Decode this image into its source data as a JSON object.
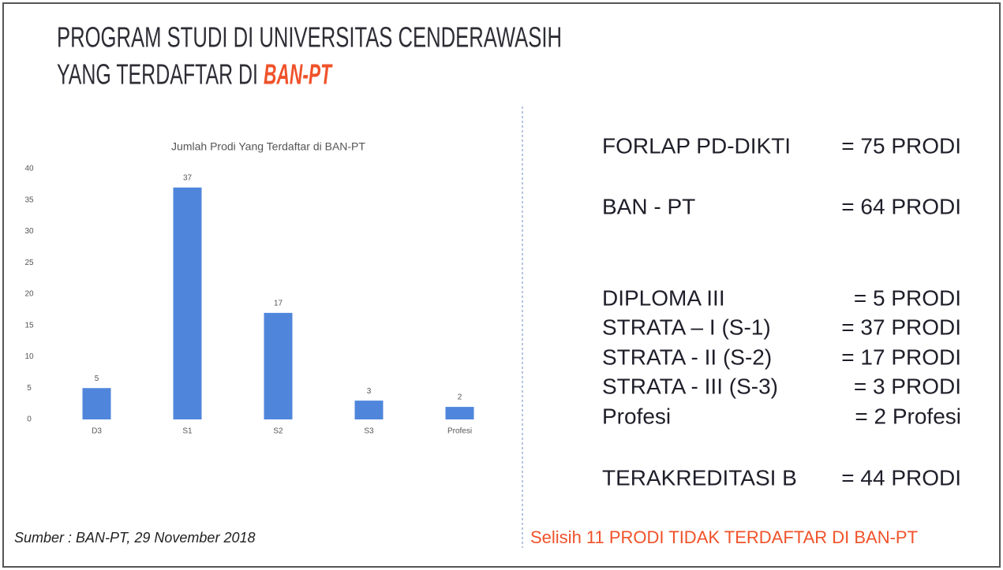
{
  "title": {
    "line1": "PROGRAM STUDI DI UNIVERSITAS CENDERAWASIH",
    "line2": "YANG TERDAFTAR DI",
    "highlight": "BAN-PT"
  },
  "chart_data": {
    "type": "bar",
    "title": "Jumlah Prodi Yang Terdaftar di BAN-PT",
    "categories": [
      "D3",
      "S1",
      "S2",
      "S3",
      "Profesi"
    ],
    "values": [
      5,
      37,
      17,
      3,
      2
    ],
    "color": "#4f86dc",
    "ylim": [
      0,
      40
    ],
    "yticks": [
      0,
      5,
      10,
      15,
      20,
      25,
      30,
      35,
      40
    ],
    "grid": false
  },
  "stats": [
    {
      "label": "FORLAP PD-DIKTI",
      "value": "= 75 PRODI"
    },
    {
      "label": "BAN - PT",
      "value": "= 64 PRODI"
    },
    {
      "label": "DIPLOMA III",
      "value": "=   5 PRODI"
    },
    {
      "label": "STRATA – I  (S-1)",
      "value": "= 37 PRODI"
    },
    {
      "label": "STRATA - II  (S-2)",
      "value": "= 17 PRODI"
    },
    {
      "label": "STRATA - III (S-3)",
      "value": "=   3 PRODI"
    },
    {
      "label": "Profesi",
      "value": "=   2 Profesi"
    },
    {
      "label": "TERAKREDITASI B",
      "value": "= 44 PRODI"
    }
  ],
  "source": "Sumber : BAN-PT, 29 November 2018",
  "note": "Selisih 11 PRODI TIDAK TERDAFTAR DI BAN-PT"
}
